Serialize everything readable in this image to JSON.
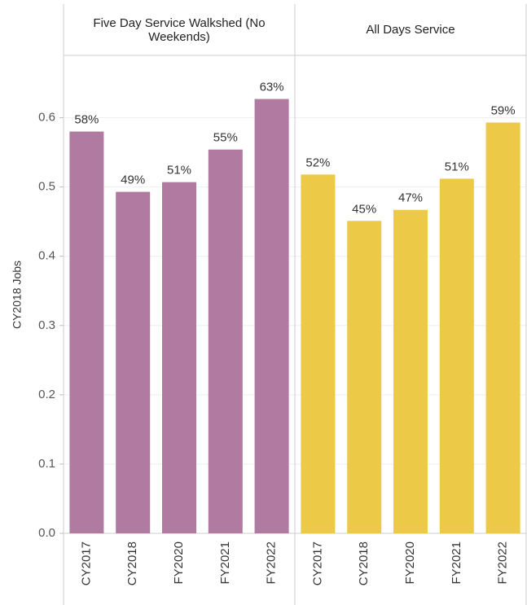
{
  "chart_data": {
    "type": "bar",
    "y_label": "CY2018 Jobs",
    "ylim": [
      0,
      0.69
    ],
    "yticks": [
      {
        "value": 0,
        "label": "0.0"
      },
      0.1,
      0.2,
      0.3,
      0.4,
      0.5,
      0.6
    ],
    "grid": true,
    "facets": [
      {
        "title": "Five Day Service Walkshed (No Weekends)",
        "color": "#b07aa1",
        "categories": [
          "CY2017",
          "CY2018",
          "FY2020",
          "FY2021",
          "FY2022"
        ],
        "values": [
          0.58,
          0.493,
          0.507,
          0.554,
          0.627
        ],
        "value_labels": [
          "58%",
          "49%",
          "51%",
          "55%",
          "63%"
        ]
      },
      {
        "title": "All Days Service",
        "color": "#edc948",
        "categories": [
          "CY2017",
          "CY2018",
          "FY2020",
          "FY2021",
          "FY2022"
        ],
        "values": [
          0.518,
          0.451,
          0.467,
          0.512,
          0.593
        ],
        "value_labels": [
          "52%",
          "45%",
          "47%",
          "51%",
          "59%"
        ]
      }
    ]
  }
}
